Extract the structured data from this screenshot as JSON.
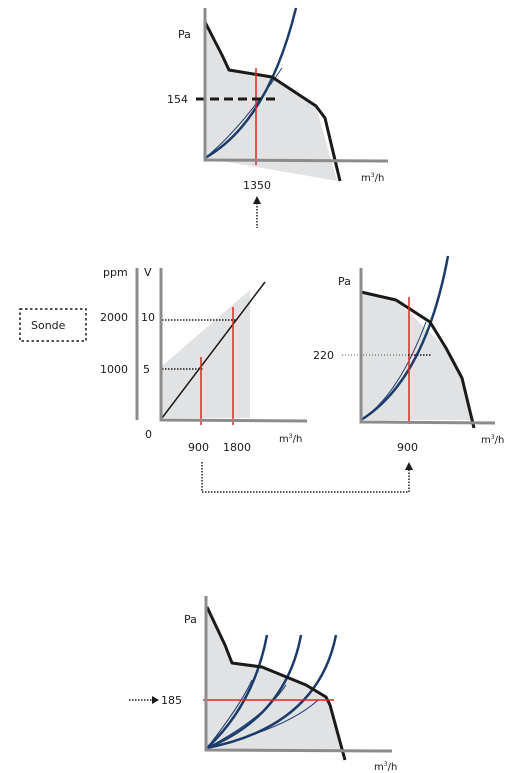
{
  "top": {
    "y_unit": "Pa",
    "x_unit": "m",
    "x_unit_sup": "3",
    "x_unit_tail": "/h",
    "pressure_value": "154",
    "flow_value": "1350"
  },
  "middle_left": {
    "sensor_label": "Sonde",
    "y_unit_ppm": "ppm",
    "y_unit_volt": "V",
    "ppm_high": "2000",
    "ppm_low": "1000",
    "volt_high": "10",
    "volt_low": "5",
    "origin": "0",
    "flow_low": "900",
    "flow_high": "1800",
    "x_unit": "m",
    "x_unit_sup": "3",
    "x_unit_tail": "/h"
  },
  "middle_right": {
    "y_unit": "Pa",
    "pressure_value": "220",
    "flow_value": "900",
    "x_unit": "m",
    "x_unit_sup": "3",
    "x_unit_tail": "/h"
  },
  "bottom": {
    "y_unit": "Pa",
    "pressure_value": "185",
    "x_unit": "m",
    "x_unit_sup": "3",
    "x_unit_tail": "/h"
  },
  "colors": {
    "axis": "#8c8c8c",
    "area": "#e1e2e3",
    "fan_curve": "#1a1a1a",
    "system_curve": "#1b3b6b",
    "operating_marker": "#e8221b"
  }
}
